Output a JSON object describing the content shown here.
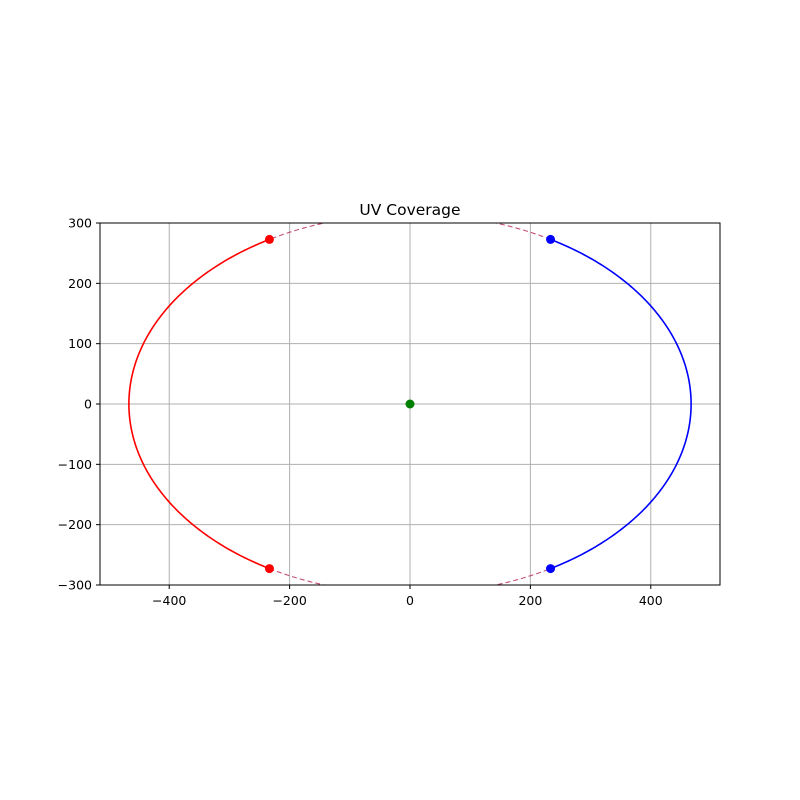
{
  "chart_data": {
    "type": "line",
    "title": "UV Coverage",
    "xlabel": "",
    "ylabel": "",
    "xlim": [
      -515,
      515
    ],
    "ylim": [
      -300,
      300
    ],
    "grid": true,
    "x_ticks": [
      -400,
      -200,
      0,
      200,
      400
    ],
    "y_ticks": [
      -300,
      -200,
      -100,
      0,
      100,
      200,
      300
    ],
    "ellipse": {
      "center": [
        0,
        0
      ],
      "semi_axis_u": 467,
      "semi_axis_v": 315
    },
    "series": [
      {
        "color": "#ff0000",
        "style": "solid",
        "t_start_deg": 120,
        "t_end_deg": 240
      },
      {
        "color": "#0000ff",
        "style": "solid",
        "t_start_deg": -60,
        "t_end_deg": 60
      },
      {
        "color": "#c44e7e",
        "style": "dashed",
        "t_start_deg": 60,
        "t_end_deg": 120
      },
      {
        "color": "#c44e7e",
        "style": "dashed",
        "t_start_deg": 240,
        "t_end_deg": 300
      }
    ],
    "points": [
      {
        "u": -233.5,
        "v": 272.8,
        "color": "#ff0000"
      },
      {
        "u": -233.5,
        "v": -272.8,
        "color": "#ff0000"
      },
      {
        "u": 233.5,
        "v": 272.8,
        "color": "#0000ff"
      },
      {
        "u": 233.5,
        "v": -272.8,
        "color": "#0000ff"
      },
      {
        "u": 0,
        "v": 0,
        "color": "#008000"
      }
    ]
  }
}
